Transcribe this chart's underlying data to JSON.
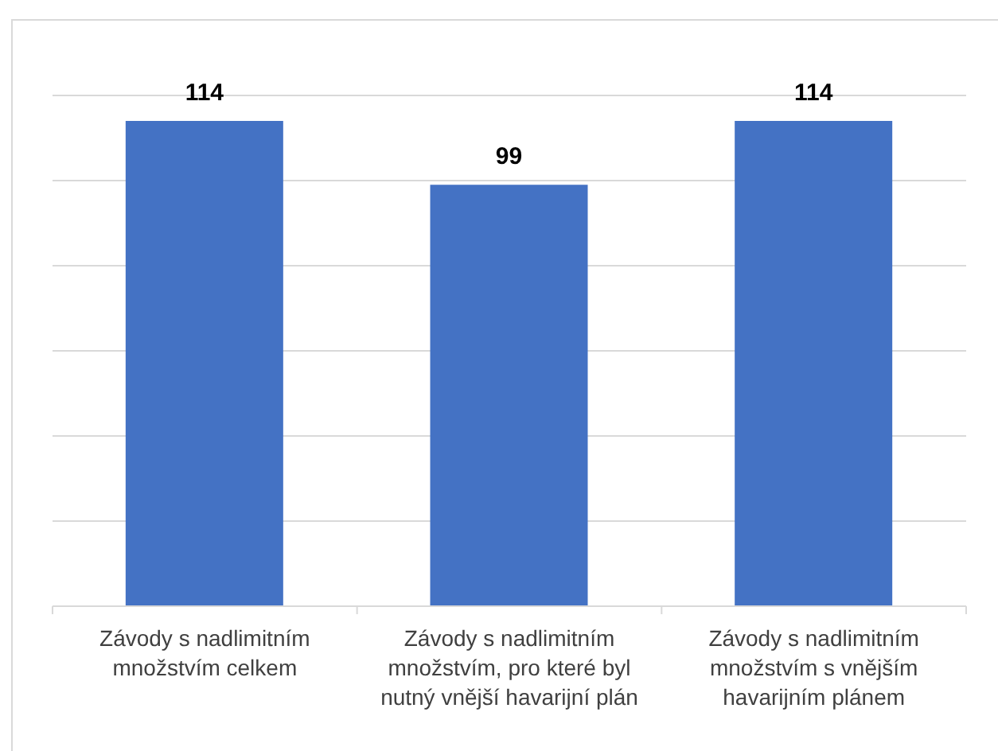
{
  "chart_data": {
    "type": "bar",
    "categories": [
      "Závody s nadlimitním množstvím celkem",
      "Závody s nadlimitním množstvím, pro které byl nutný vnější havarijní plán",
      "Závody s nadlimitním množstvím s vnějším havarijním plánem"
    ],
    "values": [
      114,
      99,
      114
    ],
    "color": "#4472c4",
    "ylim": [
      0,
      120
    ],
    "yticks": [
      {
        "value": 0,
        "label": null
      },
      {
        "value": 20,
        "label": null
      },
      {
        "value": 40,
        "label": null
      },
      {
        "value": 60,
        "label": null
      },
      {
        "value": 80,
        "label": null
      },
      {
        "value": 100,
        "label": null
      },
      {
        "value": 120,
        "label": null
      }
    ],
    "grid": "y",
    "tick_labels": "x",
    "data_labels": true
  }
}
